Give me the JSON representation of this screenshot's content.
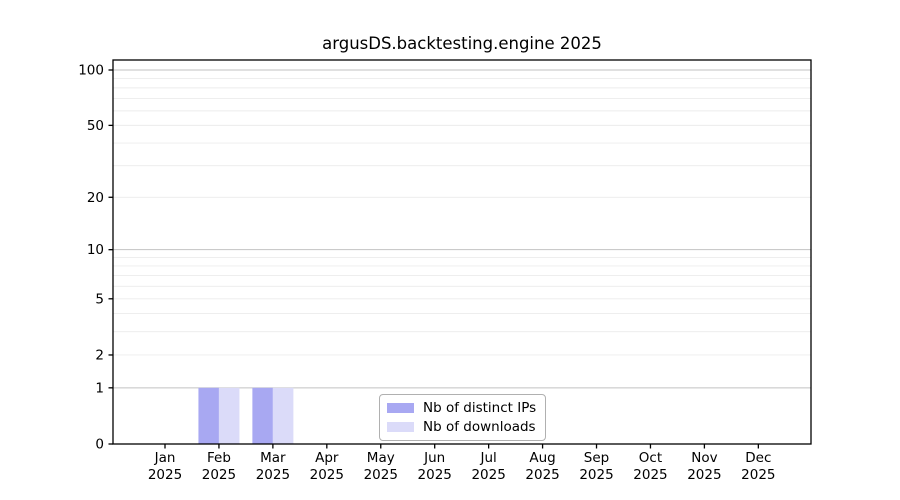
{
  "chart_data": {
    "type": "bar",
    "title": "argusDS.backtesting.engine 2025",
    "x_months": [
      "Jan",
      "Feb",
      "Mar",
      "Apr",
      "May",
      "Jun",
      "Jul",
      "Aug",
      "Sep",
      "Oct",
      "Nov",
      "Dec"
    ],
    "x_year": "2025",
    "series": [
      {
        "name": "Nb of distinct IPs",
        "slug": "distinct-ips",
        "color": "#a8a8f2",
        "values": [
          0,
          1,
          1,
          0,
          0,
          0,
          0,
          0,
          0,
          0,
          0,
          0
        ]
      },
      {
        "name": "Nb of downloads",
        "slug": "downloads",
        "color": "#dbdbf9",
        "values": [
          0,
          1,
          1,
          0,
          0,
          0,
          0,
          0,
          0,
          0,
          0,
          0
        ]
      }
    ],
    "y_scale": "log10(1+x)",
    "ylim": [
      0,
      113
    ],
    "y_ticks": [
      0,
      1,
      2,
      5,
      10,
      20,
      50,
      100
    ],
    "y_major_gridlines": [
      1,
      10,
      100
    ],
    "y_minor_gridlines": [
      2,
      3,
      4,
      5,
      6,
      7,
      8,
      9,
      20,
      30,
      40,
      50,
      60,
      70,
      80,
      90
    ],
    "grid": true,
    "legend_position": "lower center inside"
  },
  "style": {
    "bar_ips_color": "#a8a8f2",
    "bar_downloads_color": "#dbdbf9",
    "major_grid_color": "#c2c2c2",
    "minor_grid_color": "#ececec",
    "axis_color": "#000000",
    "text_color": "#000000",
    "legend_border_color": "#b0b0b0",
    "background_color": "#ffffff"
  }
}
